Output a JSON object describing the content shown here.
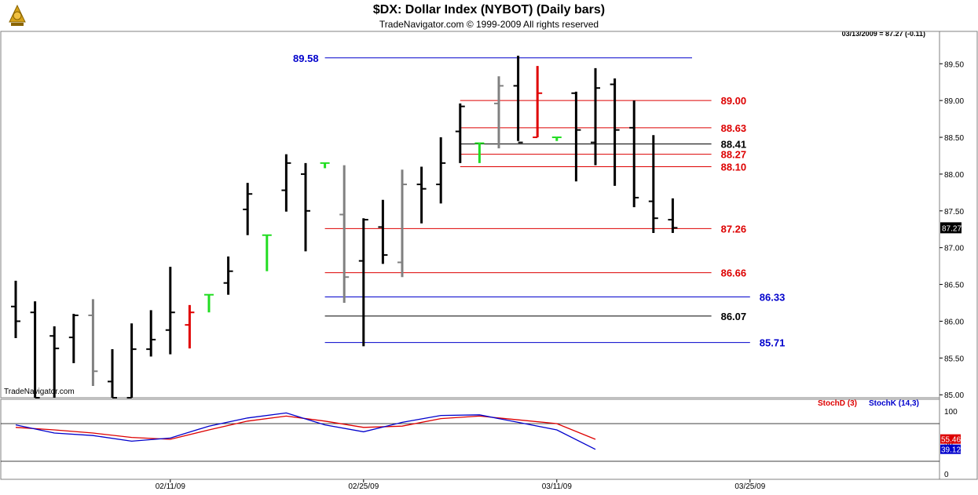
{
  "header": {
    "title": "$DX:  Dollar Index (NYBOT)  (Daily bars)",
    "subtitle": "TradeNavigator.com © 1999-2009 All rights reserved",
    "last_info": "03/13/2009 = 87.27 (-0.11)",
    "watermark": "TradeNavigator.com"
  },
  "colors": {
    "up_bar": "#000000",
    "gray_bar": "#808080",
    "green_bar": "#22dd22",
    "red_bar": "#e00000",
    "blue_level": "#0000cc",
    "red_level": "#dd0000",
    "black_level": "#000000",
    "stoch_d": "#dd0000",
    "stoch_k": "#0000cc"
  },
  "chart_data": {
    "type": "ohlc",
    "y_ticks": [
      "89.50",
      "89.00",
      "88.50",
      "88.00",
      "87.50",
      "87.00",
      "86.50",
      "86.00",
      "85.50",
      "85.00"
    ],
    "ylim": [
      84.96,
      89.94
    ],
    "x_ticks": [
      {
        "date": "02/11/09",
        "index": 8
      },
      {
        "date": "02/25/09",
        "index": 18
      },
      {
        "date": "03/11/09",
        "index": 28
      },
      {
        "date": "03/25/09",
        "index": 38
      }
    ],
    "last_price": "87.27",
    "bars": [
      {
        "o": 86.2,
        "h": 86.55,
        "l": 85.77,
        "c": 86.0,
        "color": "up"
      },
      {
        "o": 86.12,
        "h": 86.27,
        "l": 84.96,
        "c": 84.96,
        "color": "up"
      },
      {
        "o": 85.8,
        "h": 85.93,
        "l": 84.96,
        "c": 85.63,
        "color": "up"
      },
      {
        "o": 85.78,
        "h": 86.1,
        "l": 85.43,
        "c": 86.08,
        "color": "up"
      },
      {
        "o": 86.08,
        "h": 86.3,
        "l": 85.12,
        "c": 85.32,
        "color": "gray"
      },
      {
        "o": 85.18,
        "h": 85.62,
        "l": 84.96,
        "c": 84.96,
        "color": "up"
      },
      {
        "o": 84.96,
        "h": 85.97,
        "l": 84.96,
        "c": 85.62,
        "color": "up"
      },
      {
        "o": 85.62,
        "h": 86.15,
        "l": 85.52,
        "c": 85.75,
        "color": "up"
      },
      {
        "o": 85.88,
        "h": 86.74,
        "l": 85.55,
        "c": 86.12,
        "color": "up"
      },
      {
        "o": 85.95,
        "h": 86.22,
        "l": 85.63,
        "c": 86.12,
        "color": "red"
      },
      {
        "o": 86.36,
        "h": 86.36,
        "l": 86.12,
        "c": 86.36,
        "color": "green"
      },
      {
        "o": 86.52,
        "h": 86.88,
        "l": 86.36,
        "c": 86.68,
        "color": "up"
      },
      {
        "o": 87.52,
        "h": 87.88,
        "l": 87.17,
        "c": 87.73,
        "color": "up"
      },
      {
        "o": 87.17,
        "h": 87.17,
        "l": 86.68,
        "c": 87.17,
        "color": "green"
      },
      {
        "o": 87.78,
        "h": 88.27,
        "l": 87.49,
        "c": 88.15,
        "color": "up"
      },
      {
        "o": 88.0,
        "h": 88.15,
        "l": 86.95,
        "c": 87.5,
        "color": "up"
      },
      {
        "o": 88.15,
        "h": 88.15,
        "l": 88.08,
        "c": 88.15,
        "color": "green"
      },
      {
        "o": 87.45,
        "h": 88.12,
        "l": 86.25,
        "c": 86.6,
        "color": "gray"
      },
      {
        "o": 86.82,
        "h": 87.4,
        "l": 85.66,
        "c": 87.38,
        "color": "up"
      },
      {
        "o": 87.28,
        "h": 87.65,
        "l": 86.78,
        "c": 86.9,
        "color": "up"
      },
      {
        "o": 86.8,
        "h": 88.06,
        "l": 86.6,
        "c": 87.86,
        "color": "gray"
      },
      {
        "o": 87.86,
        "h": 88.1,
        "l": 87.33,
        "c": 87.8,
        "color": "up"
      },
      {
        "o": 87.86,
        "h": 88.5,
        "l": 87.6,
        "c": 88.15,
        "color": "up"
      },
      {
        "o": 88.58,
        "h": 88.96,
        "l": 88.15,
        "c": 88.92,
        "color": "up"
      },
      {
        "o": 88.42,
        "h": 88.42,
        "l": 88.15,
        "c": 88.42,
        "color": "green"
      },
      {
        "o": 88.96,
        "h": 89.33,
        "l": 88.35,
        "c": 89.2,
        "color": "gray"
      },
      {
        "o": 89.2,
        "h": 89.61,
        "l": 88.45,
        "c": 88.43,
        "color": "up"
      },
      {
        "o": 88.5,
        "h": 89.47,
        "l": 88.5,
        "c": 89.1,
        "color": "red"
      },
      {
        "o": 88.5,
        "h": 88.5,
        "l": 88.45,
        "c": 88.5,
        "color": "green"
      },
      {
        "o": 89.1,
        "h": 89.12,
        "l": 87.9,
        "c": 88.6,
        "color": "up"
      },
      {
        "o": 88.43,
        "h": 89.44,
        "l": 88.12,
        "c": 89.17,
        "color": "up"
      },
      {
        "o": 89.22,
        "h": 89.3,
        "l": 87.84,
        "c": 88.6,
        "color": "up"
      },
      {
        "o": 88.63,
        "h": 89.0,
        "l": 87.55,
        "c": 87.68,
        "color": "up"
      },
      {
        "o": 87.63,
        "h": 88.53,
        "l": 87.2,
        "c": 87.4,
        "color": "up"
      },
      {
        "o": 87.38,
        "h": 87.67,
        "l": 87.2,
        "c": 87.27,
        "color": "up"
      }
    ],
    "levels": [
      {
        "value": 89.58,
        "label": "89.58",
        "color": "blue",
        "from": 16.0,
        "to": 35.0,
        "label_side": "left"
      },
      {
        "value": 89.0,
        "label": "89.00",
        "color": "red",
        "from": 23.0,
        "to": 36.0,
        "label_side": "right"
      },
      {
        "value": 88.63,
        "label": "88.63",
        "color": "red",
        "from": 23.0,
        "to": 36.0,
        "label_side": "right"
      },
      {
        "value": 88.41,
        "label": "88.41",
        "color": "black",
        "from": 23.0,
        "to": 36.0,
        "label_side": "right"
      },
      {
        "value": 88.27,
        "label": "88.27",
        "color": "red",
        "from": 23.0,
        "to": 36.0,
        "label_side": "right"
      },
      {
        "value": 88.1,
        "label": "88.10",
        "color": "red",
        "from": 23.0,
        "to": 36.0,
        "label_side": "right"
      },
      {
        "value": 87.26,
        "label": "87.26",
        "color": "red",
        "from": 16.0,
        "to": 36.0,
        "label_side": "right"
      },
      {
        "value": 86.66,
        "label": "86.66",
        "color": "red",
        "from": 16.0,
        "to": 36.0,
        "label_side": "right"
      },
      {
        "value": 86.33,
        "label": "86.33",
        "color": "blue",
        "from": 16.0,
        "to": 38.0,
        "label_side": "right"
      },
      {
        "value": 86.07,
        "label": "86.07",
        "color": "black",
        "from": 16.0,
        "to": 36.0,
        "label_side": "right"
      },
      {
        "value": 85.71,
        "label": "85.71",
        "color": "blue",
        "from": 16.0,
        "to": 38.0,
        "label_side": "right"
      }
    ],
    "stochastic": {
      "d_label": "StochD (3)",
      "k_label": "StochK (14,3)",
      "d_last": "55.46",
      "k_last": "39.12",
      "ylim": [
        0,
        100
      ],
      "y_ticks": [
        "100",
        "50",
        "0"
      ],
      "reference_lines": [
        80,
        20
      ],
      "x": [
        0,
        2,
        4,
        6,
        8,
        10,
        12,
        14,
        16,
        18,
        20,
        22,
        24,
        26,
        28,
        30
      ],
      "d": [
        74,
        70,
        65,
        58,
        55,
        70,
        84,
        92,
        84,
        74,
        76,
        88,
        92,
        86,
        80,
        55
      ],
      "k": [
        78,
        65,
        61,
        52,
        57,
        76,
        89,
        97,
        78,
        67,
        82,
        93,
        94,
        82,
        70,
        39
      ]
    }
  }
}
